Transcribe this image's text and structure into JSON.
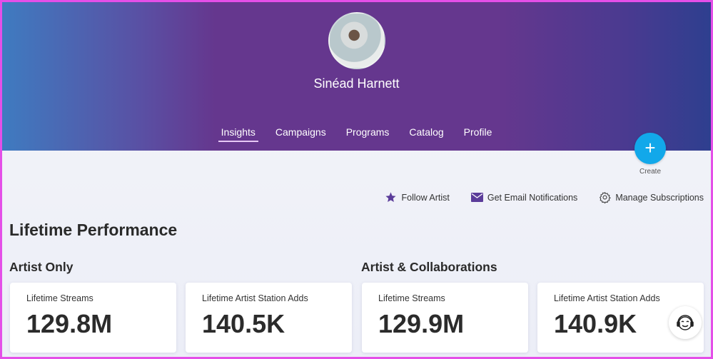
{
  "artist": {
    "name": "Sinéad Harnett"
  },
  "tabs": [
    {
      "label": "Insights",
      "active": true
    },
    {
      "label": "Campaigns"
    },
    {
      "label": "Programs"
    },
    {
      "label": "Catalog"
    },
    {
      "label": "Profile"
    }
  ],
  "create": {
    "label": "Create",
    "icon": "plus-icon",
    "color": "#12a8ea"
  },
  "actions": {
    "follow": "Follow Artist",
    "email": "Get Email Notifications",
    "manage": "Manage Subscriptions"
  },
  "page_title": "Lifetime Performance",
  "sections": [
    {
      "title": "Artist Only",
      "cards": [
        {
          "label": "Lifetime Streams",
          "value": "129.8M"
        },
        {
          "label": "Lifetime Artist Station Adds",
          "value": "140.5K"
        }
      ]
    },
    {
      "title": "Artist & Collaborations",
      "cards": [
        {
          "label": "Lifetime Streams",
          "value": "129.9M"
        },
        {
          "label": "Lifetime Artist Station Adds",
          "value": "140.9K"
        }
      ]
    }
  ],
  "colors": {
    "accent": "#5b3c9a",
    "header": "#65378e"
  }
}
